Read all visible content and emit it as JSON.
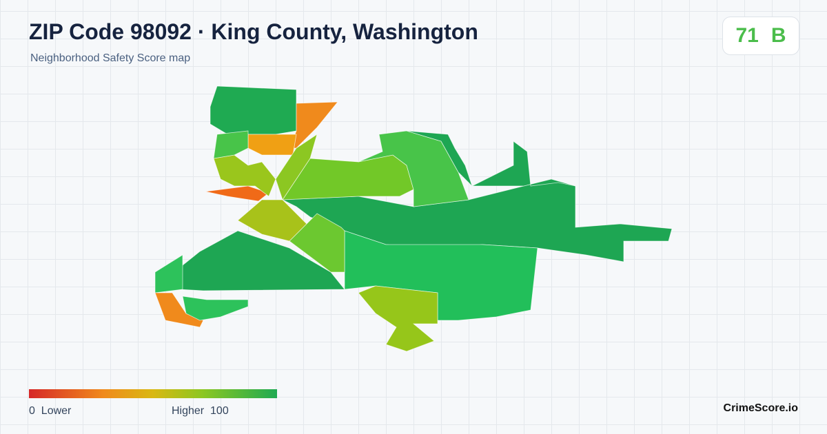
{
  "header": {
    "title": "ZIP Code 98092 · King County, Washington",
    "subtitle": "Neighborhood Safety Score map"
  },
  "score": {
    "value": 71,
    "grade": "B"
  },
  "legend": {
    "min": 0,
    "min_label": "Lower",
    "max_label": "Higher",
    "max": 100
  },
  "footer": {
    "brand": "CrimeScore.io"
  }
}
